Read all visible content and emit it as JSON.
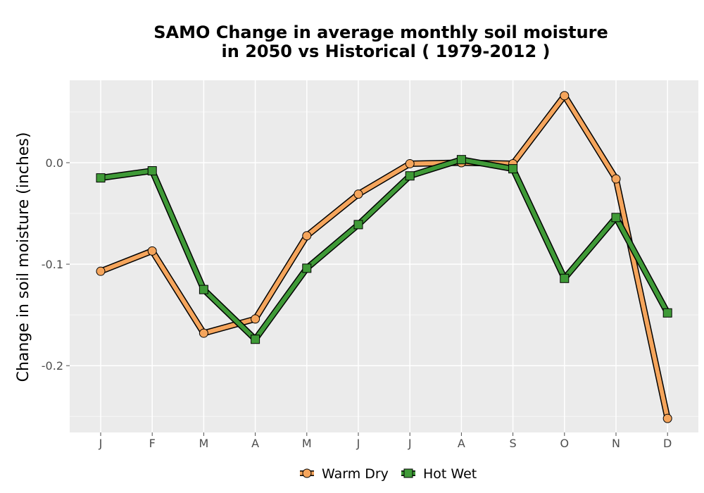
{
  "chart_data": {
    "type": "line",
    "title_line1": "SAMO  Change in average monthly soil moisture",
    "title_line2": "in 2050 vs Historical ( 1979-2012 )",
    "xlabel": "",
    "ylabel": "Change in soil moisture (inches)",
    "categories": [
      "J",
      "F",
      "M",
      "A",
      "M",
      "J",
      "J",
      "A",
      "S",
      "O",
      "N",
      "D"
    ],
    "ylim": [
      -0.267,
      0.081
    ],
    "yticks": [
      {
        "value": 0.0,
        "label": "0.0"
      },
      {
        "value": -0.1,
        "label": "-0.1"
      },
      {
        "value": -0.2,
        "label": "-0.2"
      }
    ],
    "grid": true,
    "legend_position": "bottom",
    "series": [
      {
        "name": "Warm Dry",
        "color": "#f5a55c",
        "marker": "circle",
        "values": [
          -0.107,
          -0.087,
          -0.168,
          -0.154,
          -0.072,
          -0.031,
          -0.001,
          0.0,
          -0.001,
          0.066,
          -0.016,
          -0.252
        ]
      },
      {
        "name": "Hot Wet",
        "color": "#3f9a37",
        "marker": "square",
        "values": [
          -0.015,
          -0.008,
          -0.125,
          -0.174,
          -0.104,
          -0.061,
          -0.013,
          0.003,
          -0.006,
          -0.114,
          -0.054,
          -0.148
        ]
      }
    ]
  }
}
